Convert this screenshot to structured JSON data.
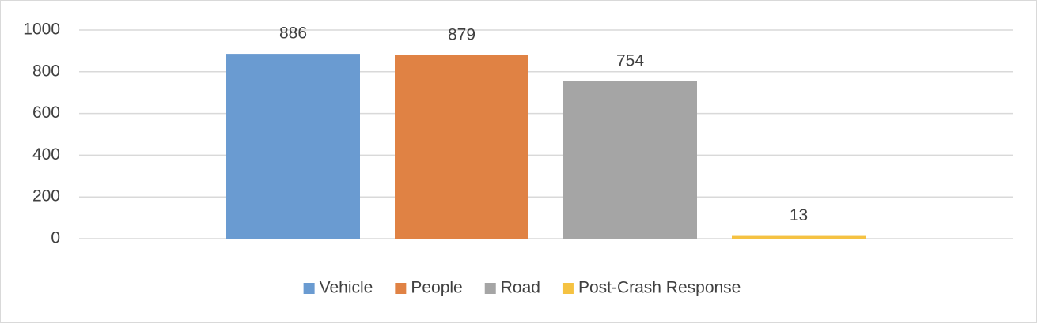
{
  "chart_data": {
    "type": "bar",
    "categories": [
      null
    ],
    "series": [
      {
        "name": "Vehicle",
        "color": "#6a9bd1",
        "values": [
          886
        ]
      },
      {
        "name": "People",
        "color": "#e08244",
        "values": [
          879
        ]
      },
      {
        "name": "Road",
        "color": "#a5a5a5",
        "values": [
          754
        ]
      },
      {
        "name": "Post-Crash Response",
        "color": "#f5c242",
        "values": [
          13
        ]
      }
    ],
    "ylim": [
      0,
      1000
    ],
    "yticks": [
      0,
      200,
      400,
      600,
      800,
      1000
    ],
    "grid": true,
    "legend": "bottom",
    "data_labels": true
  }
}
